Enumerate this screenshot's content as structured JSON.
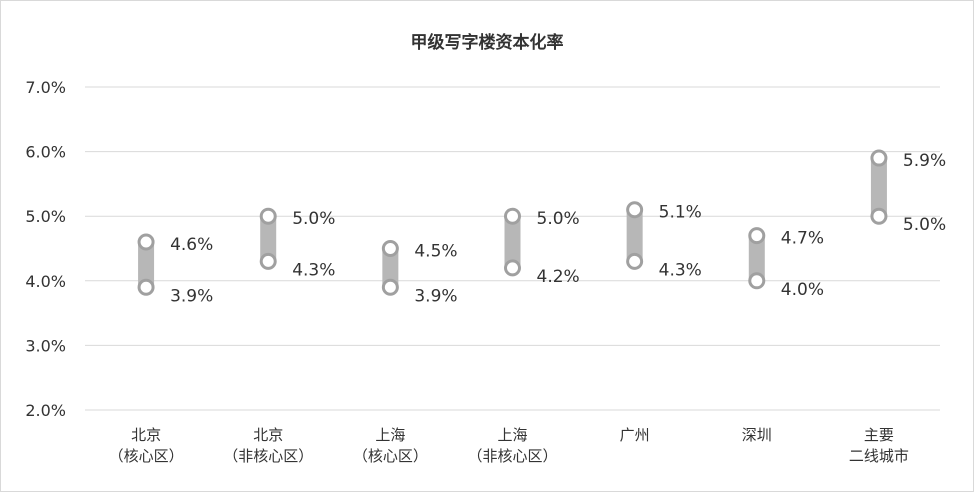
{
  "chart_data": {
    "type": "range-bar",
    "title": "甲级写字楼资本化率",
    "categories": [
      [
        "北京",
        "（核心区）"
      ],
      [
        "北京",
        "（非核心区）"
      ],
      [
        "上海",
        "（核心区）"
      ],
      [
        "上海",
        "（非核心区）"
      ],
      [
        "广州"
      ],
      [
        "深圳"
      ],
      [
        "主要",
        "二线城市"
      ]
    ],
    "series": [
      {
        "values": [
          3.9,
          4.3,
          3.9,
          4.2,
          4.3,
          4.0,
          5.0
        ]
      },
      {
        "values": [
          4.6,
          5.0,
          4.5,
          5.0,
          5.1,
          4.7,
          5.9
        ]
      }
    ],
    "value_format": "%",
    "ylim": [
      2.0,
      7.0
    ],
    "yticks": [
      "2.0%",
      "3.0%",
      "4.0%",
      "5.0%",
      "6.0%",
      "7.0%"
    ],
    "grid": true,
    "legend": "none",
    "colors": {
      "bar": "#b7b7b7",
      "marker_stroke": "#a0a0a0",
      "marker_fill": "#ffffff",
      "grid": "#d9d9d9",
      "text": "#333333"
    }
  }
}
